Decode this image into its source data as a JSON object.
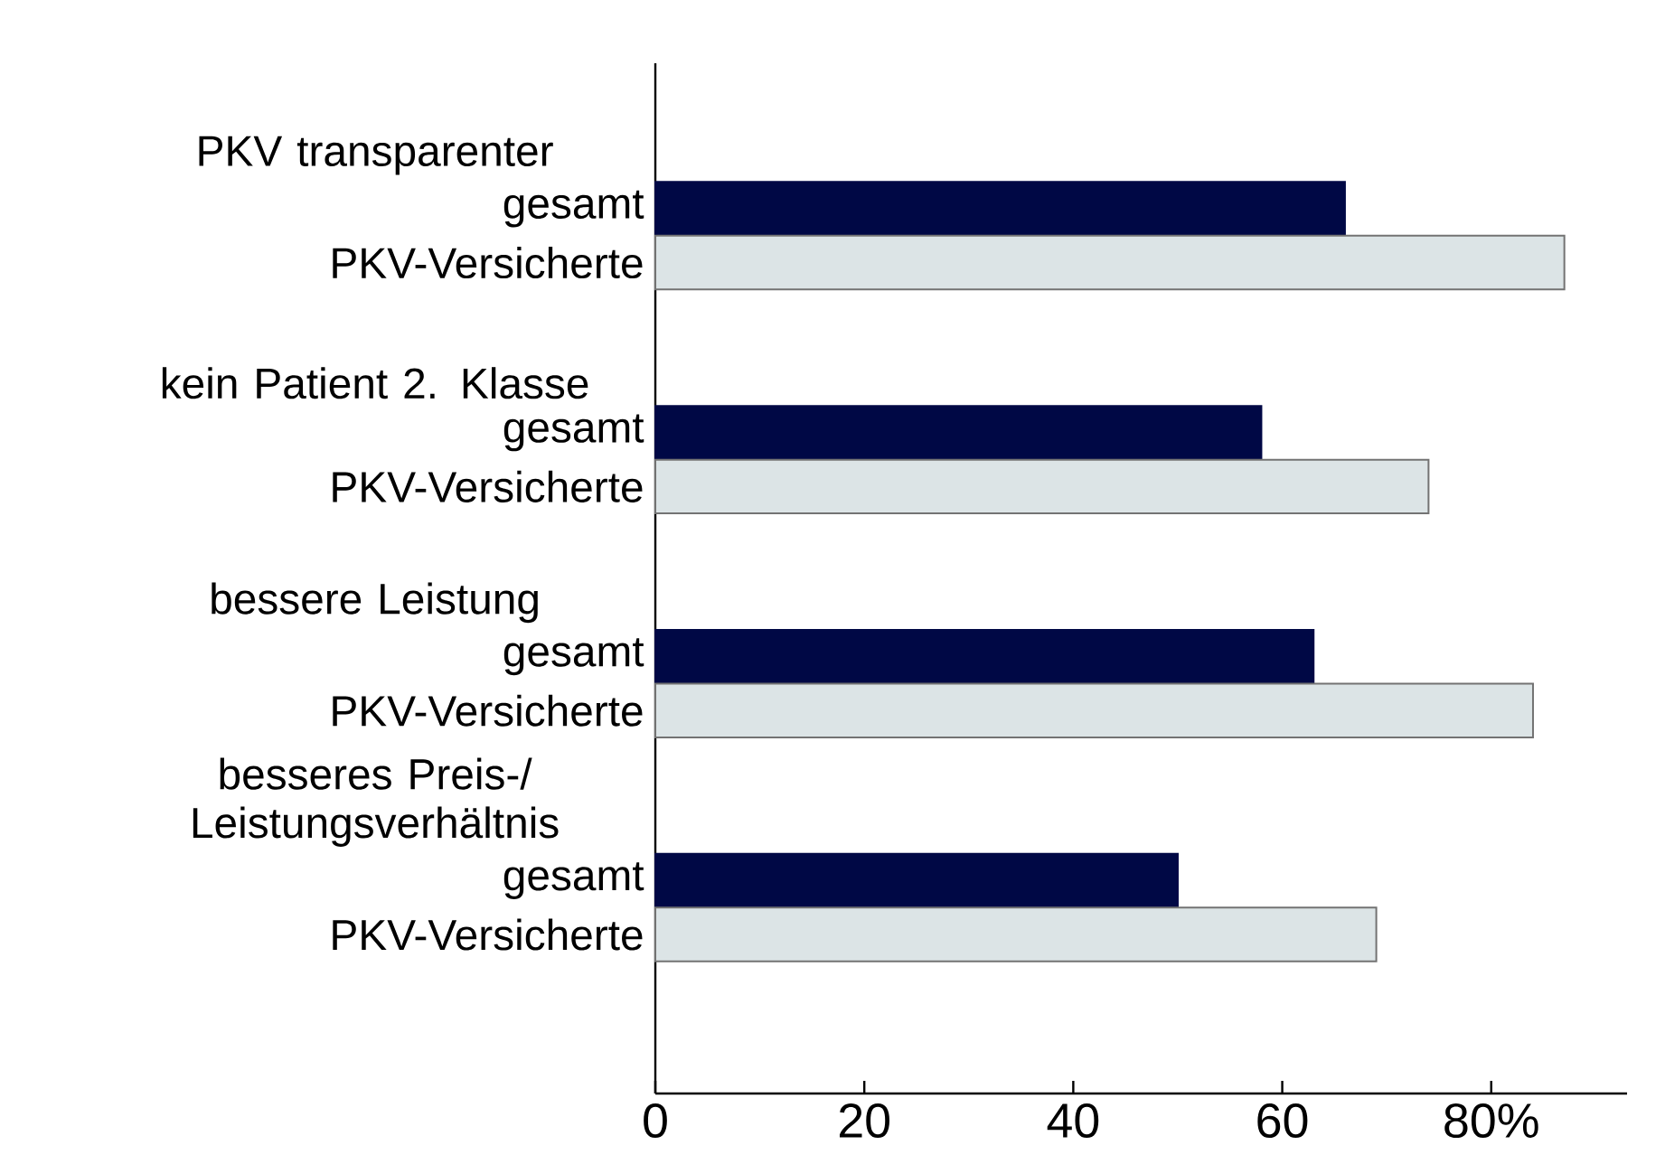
{
  "chart_data": {
    "type": "bar",
    "orientation": "horizontal",
    "categories": [
      "PKV transparenter",
      "kein Patient 2. Klasse",
      "bessere Leistung",
      "besseres Preis-/ Leistungsverhältnis"
    ],
    "series": [
      {
        "name": "gesamt",
        "color": "#000845",
        "values": [
          66,
          58,
          63,
          50
        ]
      },
      {
        "name": "PKV-Versicherte",
        "color": "#dce4e6",
        "values": [
          87,
          74,
          84,
          69
        ]
      }
    ],
    "xlim": [
      0,
      93
    ],
    "xticks": [
      0,
      20,
      40,
      60,
      {
        "value": 80,
        "label": "80%"
      }
    ]
  }
}
